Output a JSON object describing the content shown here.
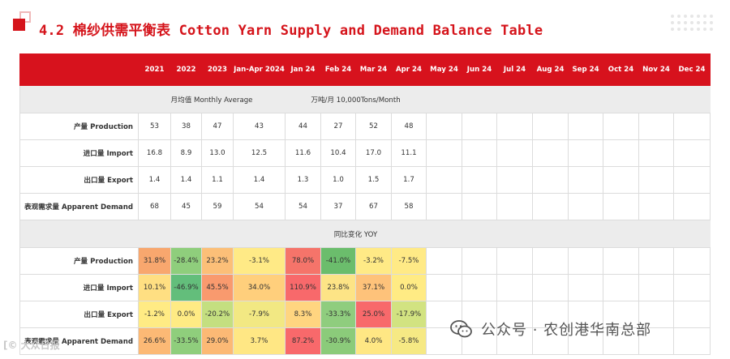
{
  "title": "4.2 棉纱供需平衡表 Cotton Yarn Supply and Demand Balance Table",
  "columns": [
    "2021",
    "2022",
    "2023",
    "Jan-Apr 2024",
    "Jan 24",
    "Feb 24",
    "Mar 24",
    "Apr 24",
    "May 24",
    "Jun 24",
    "Jul 24",
    "Aug 24",
    "Sep 24",
    "Oct 24",
    "Nov 24",
    "Dec 24"
  ],
  "monthly_section": {
    "left_label": "月均值 Monthly Average",
    "unit_label": "万吨/月  10,000Tons/Month"
  },
  "monthly_rows": [
    {
      "label": "产量 Production",
      "values": [
        "53",
        "38",
        "47",
        "43",
        "44",
        "27",
        "52",
        "48"
      ]
    },
    {
      "label": "进口量 Import",
      "values": [
        "16.8",
        "8.9",
        "13.0",
        "12.5",
        "11.6",
        "10.4",
        "17.0",
        "11.1"
      ]
    },
    {
      "label": "出口量 Export",
      "values": [
        "1.4",
        "1.4",
        "1.1",
        "1.4",
        "1.3",
        "1.0",
        "1.5",
        "1.7"
      ]
    },
    {
      "label": "表观需求量 Apparent Demand",
      "values": [
        "68",
        "45",
        "59",
        "54",
        "54",
        "37",
        "67",
        "58"
      ]
    }
  ],
  "yoy_section": {
    "label": "同比变化 YOY"
  },
  "yoy_rows": [
    {
      "label": "产量 Production",
      "values": [
        "31.8%",
        "-28.4%",
        "23.2%",
        "-3.1%",
        "78.0%",
        "-41.0%",
        "-3.2%",
        "-7.5%"
      ],
      "colors": [
        "#f8a76e",
        "#8fce7c",
        "#fcbf78",
        "#ffea86",
        "#f5746a",
        "#6bbd6c",
        "#ffea86",
        "#ffea86"
      ]
    },
    {
      "label": "进口量 Import",
      "values": [
        "10.1%",
        "-46.9%",
        "45.5%",
        "34.0%",
        "110.9%",
        "23.8%",
        "37.1%",
        "0.0%"
      ],
      "colors": [
        "#ffdf82",
        "#63be7b",
        "#f99a6e",
        "#ffcf7c",
        "#f8696b",
        "#fde486",
        "#fec27a",
        "#ffeb84"
      ]
    },
    {
      "label": "出口量 Export",
      "values": [
        "-1.2%",
        "0.0%",
        "-20.2%",
        "-7.9%",
        "8.3%",
        "-33.3%",
        "25.0%",
        "-17.9%"
      ],
      "colors": [
        "#ffeb84",
        "#ffeb84",
        "#c4df80",
        "#f2e883",
        "#ffd580",
        "#8fcd7e",
        "#f8696b",
        "#d2e381"
      ]
    },
    {
      "label": "表观需求量 Apparent Demand",
      "values": [
        "26.6%",
        "-33.5%",
        "29.0%",
        "3.7%",
        "87.2%",
        "-30.9%",
        "4.0%",
        "-5.8%"
      ],
      "colors": [
        "#fcb975",
        "#8fce7c",
        "#fcb975",
        "#ffe784",
        "#f8696b",
        "#8bcb7a",
        "#ffe784",
        "#f6e984"
      ]
    }
  ],
  "watermark_left": "[© 大众日报",
  "watermark_right": "公众号 · 农创港华南总部"
}
